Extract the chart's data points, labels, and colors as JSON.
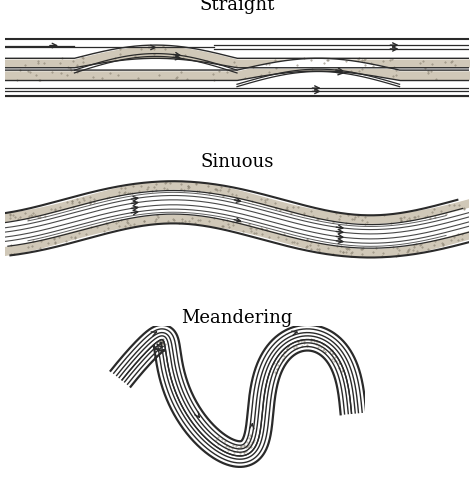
{
  "title_straight": "Straight",
  "title_sinuous": "Sinuous",
  "title_meandering": "Meandering",
  "bg_color": "#ffffff",
  "line_color": "#2a2a2a",
  "sand_color": "#d0c8b8",
  "title_fontsize": 13,
  "title_font": "DejaVu Serif"
}
